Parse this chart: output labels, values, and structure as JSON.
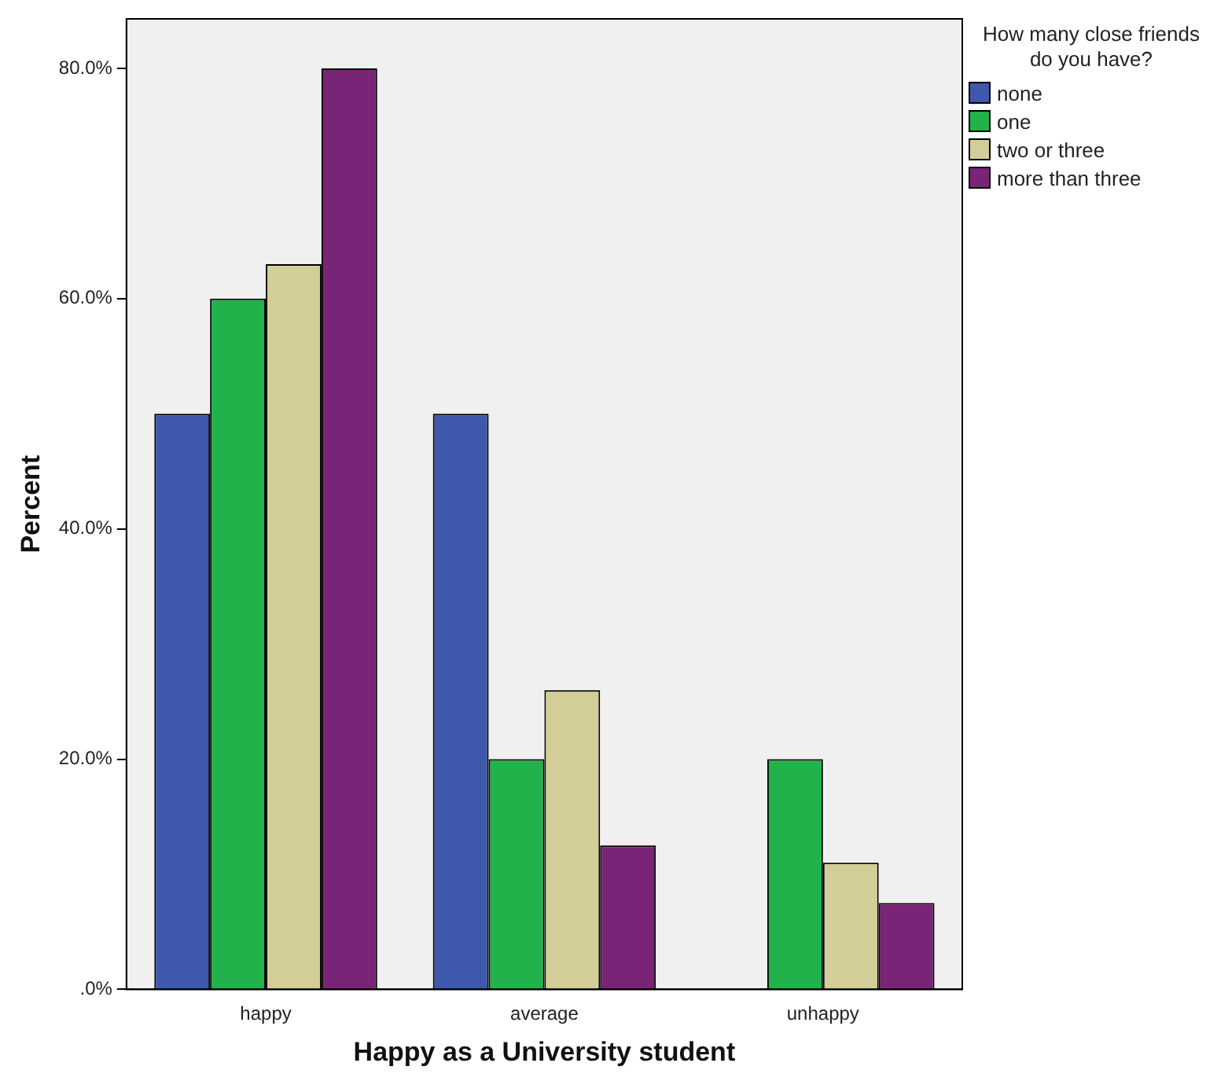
{
  "chart_data": {
    "type": "bar",
    "xlabel": "Happy as a University student",
    "ylabel": "Percent",
    "legend_title": "How many close friends do you have?",
    "legend": "top right",
    "grid": false,
    "categories": [
      "happy",
      "average",
      "unhappy"
    ],
    "series": [
      {
        "name": "none",
        "color": "#3e58ac",
        "values": [
          50,
          50,
          null
        ]
      },
      {
        "name": "one",
        "color": "#21b24b",
        "values": [
          60,
          20,
          20
        ]
      },
      {
        "name": "two or three",
        "color": "#d3ce97",
        "values": [
          63,
          26,
          11
        ]
      },
      {
        "name": "more than three",
        "color": "#7a2477",
        "values": [
          80,
          12.5,
          7.5
        ]
      }
    ],
    "ylim": [
      0,
      84.3
    ],
    "yticks": [
      {
        "value": 0,
        "label": ".0%"
      },
      {
        "value": 20,
        "label": "20.0%"
      },
      {
        "value": 40,
        "label": "40.0%"
      },
      {
        "value": 60,
        "label": "60.0%"
      },
      {
        "value": 80,
        "label": "80.0%"
      }
    ]
  }
}
